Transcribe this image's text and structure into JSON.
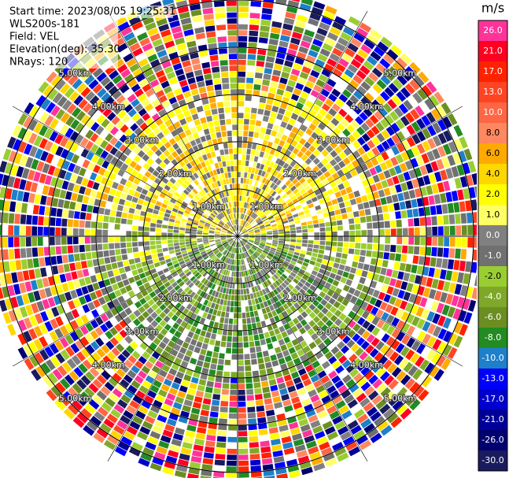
{
  "chart_data": {
    "type": "ppi",
    "info": [
      "Start time: 2023/08/05 19:25:31",
      "WLS200s-181",
      "Field: VEL",
      "Elevation(deg): 35.30",
      "NRays: 120"
    ],
    "rlim": [
      0,
      5
    ],
    "range_rings": [
      {
        "value": 1,
        "label": "1.00km"
      },
      {
        "value": 2,
        "label": "2.00km"
      },
      {
        "value": 3,
        "label": "3.00km"
      },
      {
        "value": 4,
        "label": "4.00km"
      },
      {
        "value": 5,
        "label": "5.00km"
      }
    ],
    "colorbar": {
      "unit": "m/s",
      "ticks": [
        {
          "value": 26,
          "label": "26.0"
        },
        {
          "value": 21,
          "label": "21.0"
        },
        {
          "value": 17,
          "label": "17.0"
        },
        {
          "value": 13,
          "label": "13.0"
        },
        {
          "value": 10,
          "label": "10.0"
        },
        {
          "value": 8,
          "label": "8.0"
        },
        {
          "value": 6,
          "label": "6.0"
        },
        {
          "value": 4,
          "label": "4.0"
        },
        {
          "value": 2,
          "label": "2.0"
        },
        {
          "value": 1,
          "label": "1.0"
        },
        {
          "value": 0,
          "label": "0.0"
        },
        {
          "value": -1,
          "label": "-1.0"
        },
        {
          "value": -2,
          "label": "-2.0"
        },
        {
          "value": -4,
          "label": "-4.0"
        },
        {
          "value": -6,
          "label": "-6.0"
        },
        {
          "value": -8,
          "label": "-8.0"
        },
        {
          "value": -10,
          "label": "-10.0"
        },
        {
          "value": -13,
          "label": "-13.0"
        },
        {
          "value": -17,
          "label": "-17.0"
        },
        {
          "value": -21,
          "label": "-21.0"
        },
        {
          "value": -26,
          "label": "-26.0"
        },
        {
          "value": -30,
          "label": "-30.0"
        }
      ],
      "colors": [
        "#ff3399",
        "#ff0022",
        "#ff2200",
        "#ff4422",
        "#ff6644",
        "#ff8860",
        "#ffaa00",
        "#ffd700",
        "#ffff00",
        "#ffff66",
        "#808080",
        "#707070",
        "#9acd32",
        "#7fa82a",
        "#6b8e23",
        "#228b22",
        "#1e7fcb",
        "#0000ff",
        "#0000cc",
        "#000099",
        "#000070",
        "#1a1a5e"
      ]
    }
  }
}
